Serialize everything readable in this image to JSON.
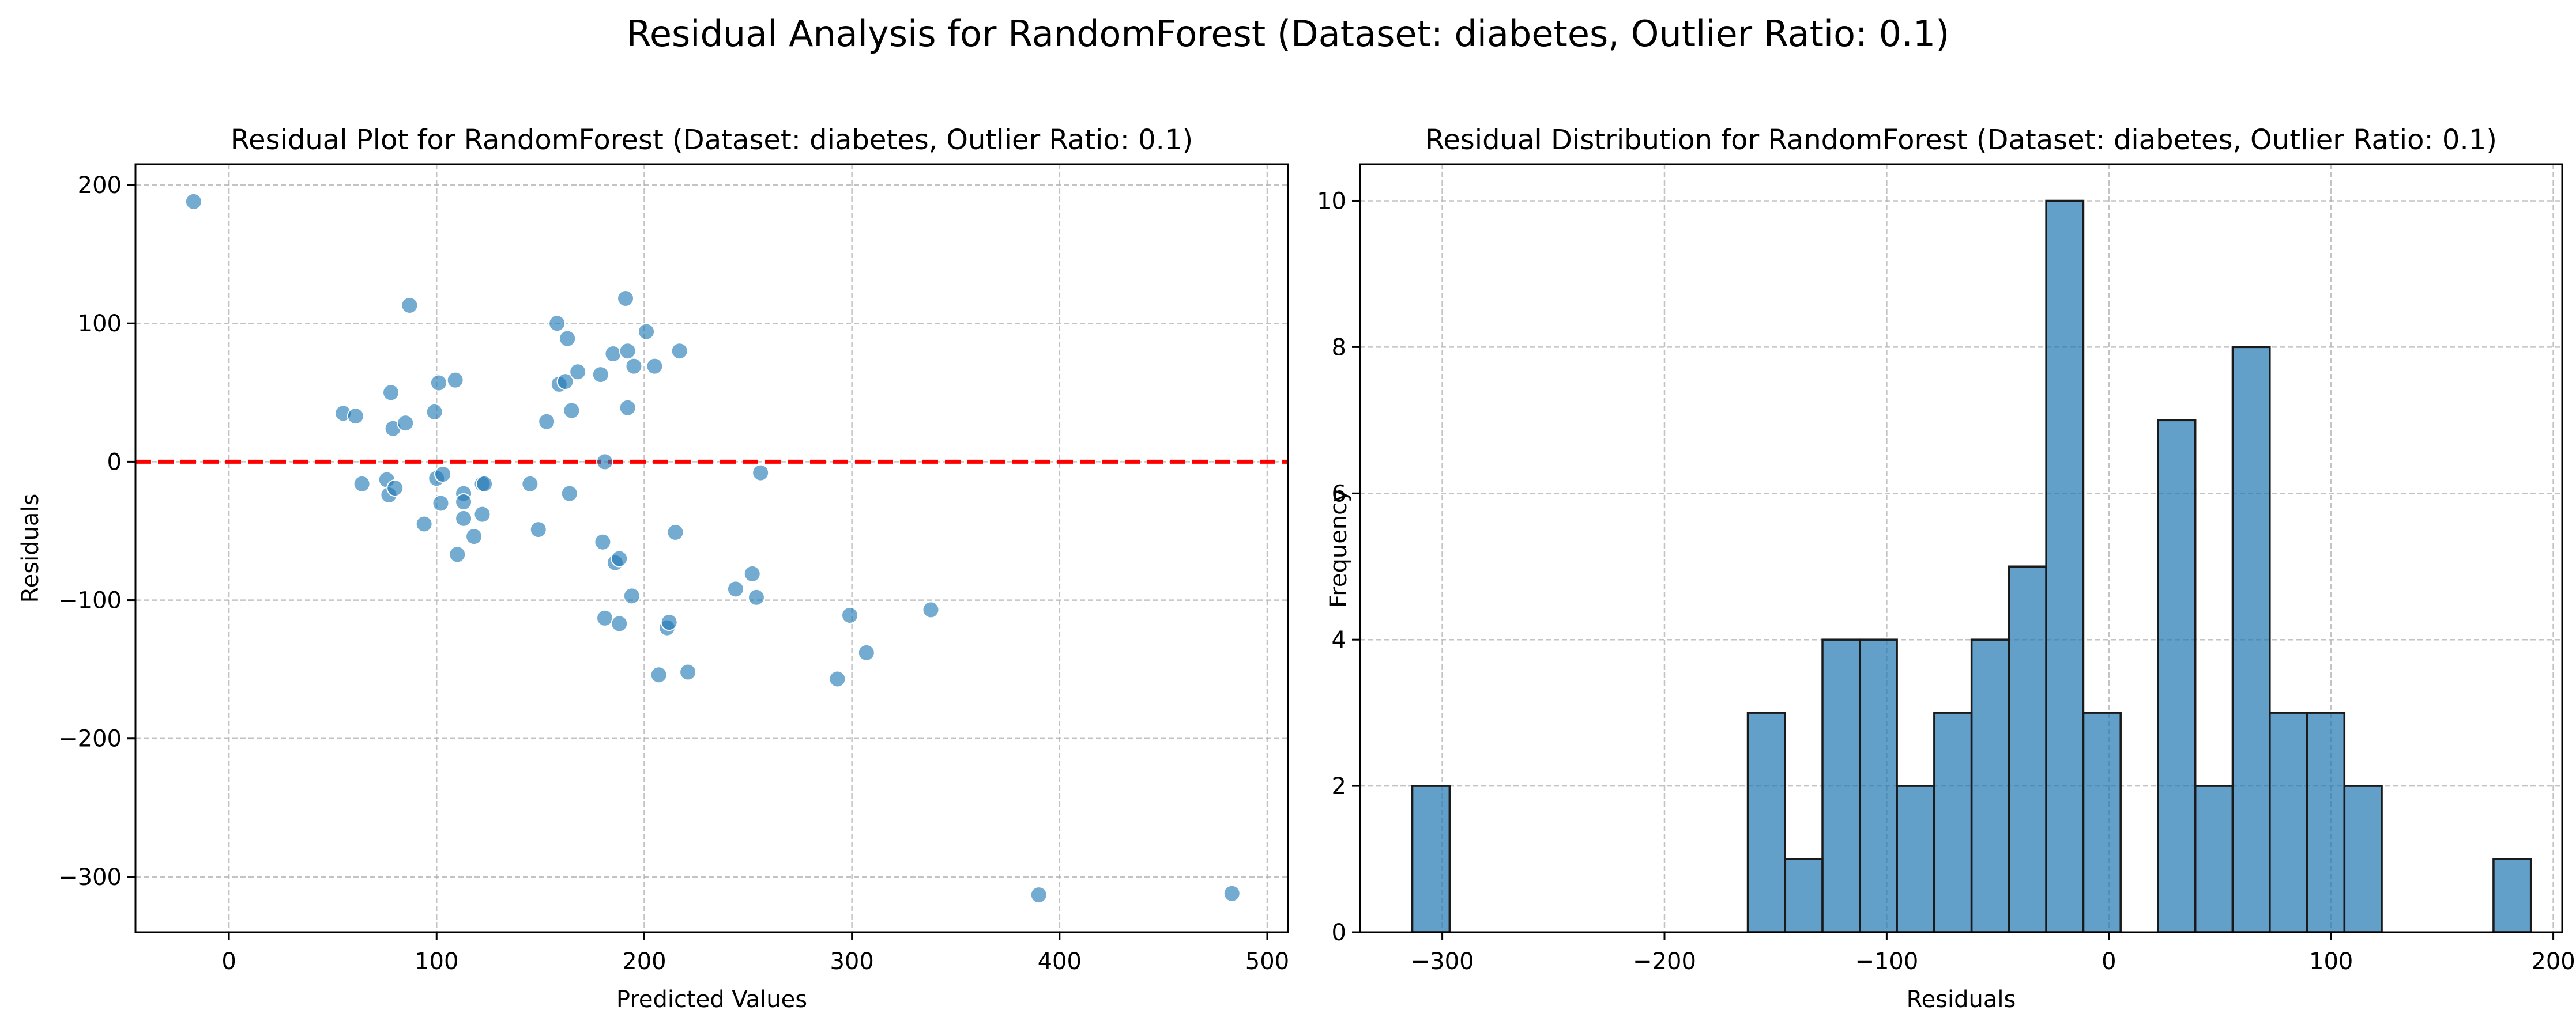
{
  "figure": {
    "suptitle": "Residual Analysis for RandomForest (Dataset: diabetes, Outlier Ratio: 0.1)"
  },
  "chart_data": [
    {
      "type": "scatter",
      "title": "Residual Plot for RandomForest (Dataset: diabetes, Outlier Ratio: 0.1)",
      "xlabel": "Predicted Values",
      "ylabel": "Residuals",
      "xlim": [
        -45,
        510
      ],
      "ylim": [
        -340,
        215
      ],
      "xticks": [
        0,
        100,
        200,
        300,
        400,
        500
      ],
      "yticks": [
        -300,
        -200,
        -100,
        0,
        100,
        200
      ],
      "grid": true,
      "point_color": "#1f77b4",
      "reference_line": {
        "y": 0,
        "color": "#ff0000",
        "style": "dashed"
      },
      "points": [
        {
          "x": -17,
          "y": 188
        },
        {
          "x": 55,
          "y": 35
        },
        {
          "x": 61,
          "y": 33
        },
        {
          "x": 64,
          "y": -16
        },
        {
          "x": 76,
          "y": -13
        },
        {
          "x": 77,
          "y": -24
        },
        {
          "x": 78,
          "y": 50
        },
        {
          "x": 79,
          "y": 24
        },
        {
          "x": 80,
          "y": -19
        },
        {
          "x": 85,
          "y": 28
        },
        {
          "x": 87,
          "y": 113
        },
        {
          "x": 94,
          "y": -45
        },
        {
          "x": 99,
          "y": 36
        },
        {
          "x": 100,
          "y": -12
        },
        {
          "x": 101,
          "y": 57
        },
        {
          "x": 102,
          "y": -30
        },
        {
          "x": 103,
          "y": -9
        },
        {
          "x": 109,
          "y": 59
        },
        {
          "x": 110,
          "y": -67
        },
        {
          "x": 113,
          "y": -23
        },
        {
          "x": 113,
          "y": -29
        },
        {
          "x": 113,
          "y": -41
        },
        {
          "x": 118,
          "y": -54
        },
        {
          "x": 122,
          "y": -38
        },
        {
          "x": 122,
          "y": -16
        },
        {
          "x": 123,
          "y": -16
        },
        {
          "x": 145,
          "y": -16
        },
        {
          "x": 149,
          "y": -49
        },
        {
          "x": 153,
          "y": 29
        },
        {
          "x": 158,
          "y": 100
        },
        {
          "x": 159,
          "y": 56
        },
        {
          "x": 162,
          "y": 58
        },
        {
          "x": 163,
          "y": 89
        },
        {
          "x": 164,
          "y": -23
        },
        {
          "x": 165,
          "y": 37
        },
        {
          "x": 168,
          "y": 65
        },
        {
          "x": 179,
          "y": 63
        },
        {
          "x": 180,
          "y": -58
        },
        {
          "x": 181,
          "y": 0
        },
        {
          "x": 181,
          "y": -113
        },
        {
          "x": 185,
          "y": 78
        },
        {
          "x": 186,
          "y": -73
        },
        {
          "x": 188,
          "y": -70
        },
        {
          "x": 188,
          "y": -117
        },
        {
          "x": 191,
          "y": 118
        },
        {
          "x": 192,
          "y": 80
        },
        {
          "x": 192,
          "y": 39
        },
        {
          "x": 194,
          "y": -97
        },
        {
          "x": 195,
          "y": 69
        },
        {
          "x": 201,
          "y": 94
        },
        {
          "x": 205,
          "y": 69
        },
        {
          "x": 207,
          "y": -154
        },
        {
          "x": 211,
          "y": -120
        },
        {
          "x": 212,
          "y": -116
        },
        {
          "x": 215,
          "y": -51
        },
        {
          "x": 217,
          "y": 80
        },
        {
          "x": 221,
          "y": -152
        },
        {
          "x": 244,
          "y": -92
        },
        {
          "x": 252,
          "y": -81
        },
        {
          "x": 254,
          "y": -98
        },
        {
          "x": 256,
          "y": -8
        },
        {
          "x": 293,
          "y": -157
        },
        {
          "x": 299,
          "y": -111
        },
        {
          "x": 307,
          "y": -138
        },
        {
          "x": 338,
          "y": -107
        },
        {
          "x": 390,
          "y": -313
        },
        {
          "x": 483,
          "y": -312
        }
      ]
    },
    {
      "type": "bar",
      "title": "Residual Distribution for RandomForest (Dataset: diabetes, Outlier Ratio: 0.1)",
      "xlabel": "Residuals",
      "ylabel": "Frequency",
      "xlim": [
        -337,
        204
      ],
      "ylim": [
        0,
        10.5
      ],
      "xticks": [
        -300,
        -200,
        -100,
        0,
        100,
        200
      ],
      "yticks": [
        0,
        2,
        4,
        6,
        8,
        10
      ],
      "grid": true,
      "bar_color": "#1f77b4",
      "bin_edges": [
        -313.5,
        -296.7,
        -279.9,
        -263.2,
        -246.4,
        -229.6,
        -212.8,
        -196.0,
        -179.3,
        -162.5,
        -145.7,
        -128.9,
        -112.1,
        -95.4,
        -78.6,
        -61.8,
        -45.0,
        -28.2,
        -11.5,
        5.3,
        22.1,
        38.9,
        55.7,
        72.4,
        89.2,
        106.0,
        122.8,
        139.6,
        156.3,
        173.1,
        189.9
      ],
      "counts": [
        2,
        0,
        0,
        0,
        0,
        0,
        0,
        0,
        0,
        3,
        1,
        4,
        4,
        2,
        3,
        4,
        5,
        10,
        3,
        0,
        7,
        2,
        8,
        3,
        3,
        2,
        0,
        0,
        0,
        1
      ]
    }
  ]
}
